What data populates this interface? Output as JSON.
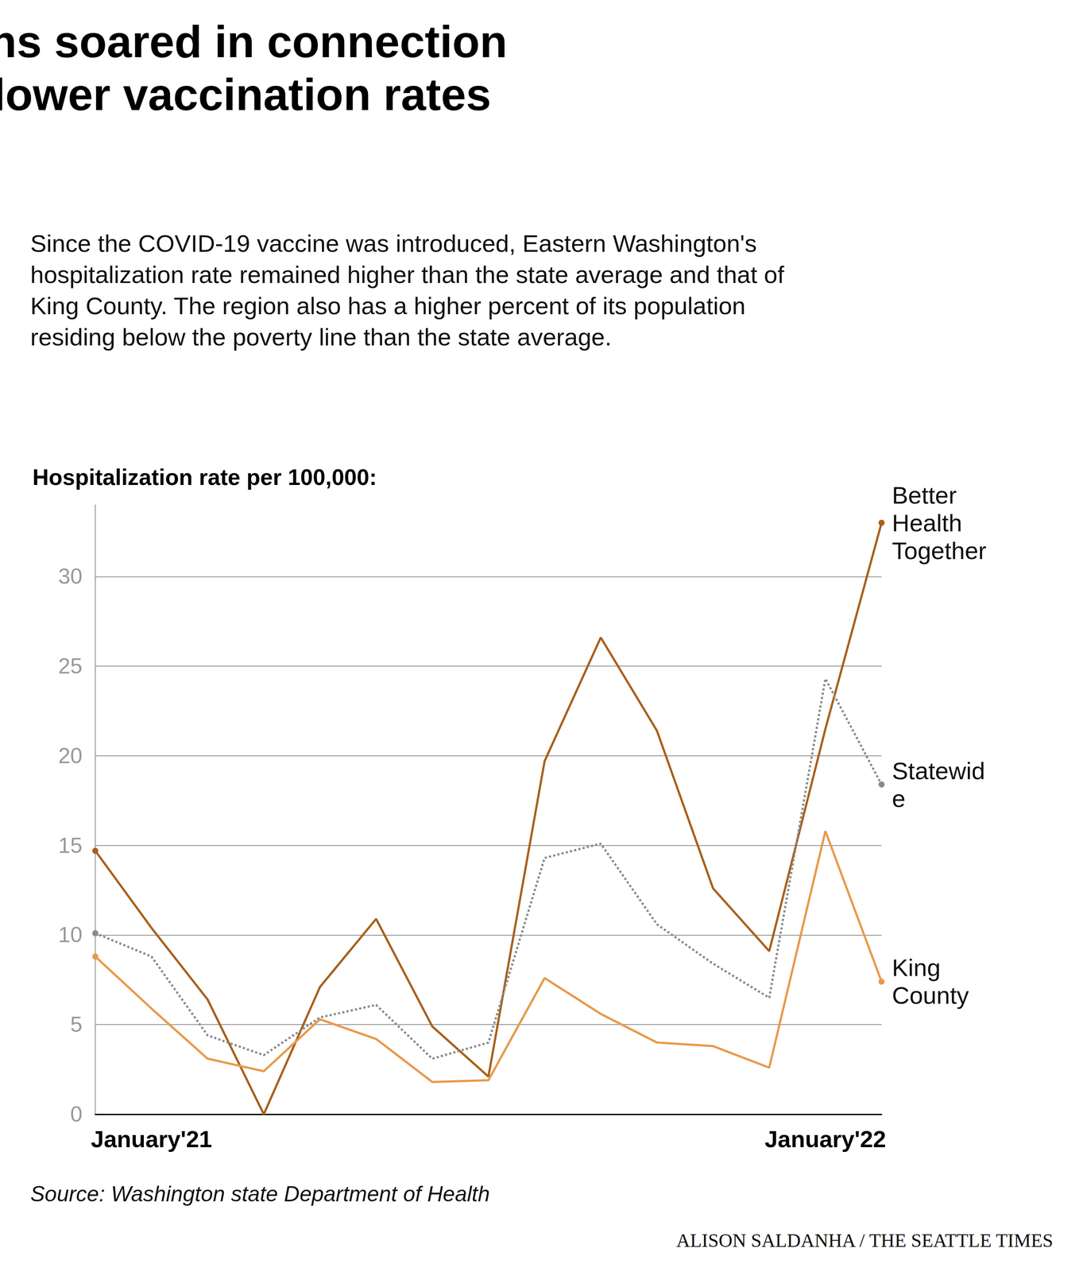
{
  "chart_data": {
    "type": "line",
    "title": "Overall, hospitalizations soared in connection with lower incomes, lower vaccination rates",
    "subtitle": "Since the COVID-19 vaccine was introduced, Eastern Washington's hospitalization rate remained higher than the state average and that of King County. The region also has a higher percent of its population residing below the poverty line than the state average.",
    "y_label": "Hospitalization rate per 100,000:",
    "source": "Source: Washington state Department of Health",
    "credit": "ALISON SALDANHA / THE SEATTLE TIMES",
    "categories": [
      null,
      "January'21",
      null,
      null,
      null,
      null,
      null,
      null,
      null,
      null,
      null,
      null,
      null,
      "January'22",
      null
    ],
    "series": [
      {
        "name": "Better Health Together",
        "color": "#a8601c",
        "line_style": "solid",
        "marker": "circle",
        "values": [
          14.7,
          10.4,
          6.4,
          0,
          7.1,
          10.9,
          4.9,
          2.1,
          19.7,
          26.6,
          21.4,
          12.6,
          9.1,
          21.5,
          33.0
        ]
      },
      {
        "name": "Statewide",
        "color": "#8a8a8a",
        "line_style": "dotted",
        "marker": "circle",
        "values": [
          10.1,
          8.8,
          4.4,
          3.3,
          5.4,
          6.1,
          3.1,
          4.0,
          14.3,
          15.1,
          10.6,
          8.4,
          6.5,
          24.3,
          18.4
        ]
      },
      {
        "name": "King County",
        "color": "#e8994a",
        "line_style": "solid",
        "marker": "circle",
        "values": [
          8.8,
          5.9,
          3.1,
          2.4,
          5.3,
          4.2,
          1.8,
          1.9,
          7.6,
          5.6,
          4.0,
          3.8,
          2.6,
          15.8,
          7.4
        ]
      }
    ],
    "ylim": [
      0,
      34
    ],
    "yticks": [
      0,
      5,
      10,
      15,
      20,
      25,
      30
    ],
    "grid": true
  }
}
